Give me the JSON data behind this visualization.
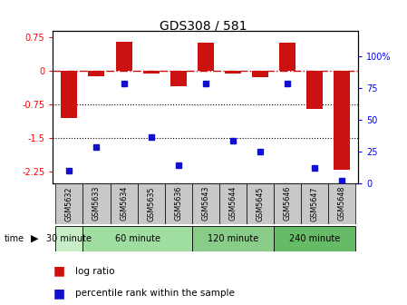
{
  "title": "GDS308 / 581",
  "samples": [
    "GSM5632",
    "GSM5633",
    "GSM5634",
    "GSM5635",
    "GSM5636",
    "GSM5643",
    "GSM5644",
    "GSM5645",
    "GSM5646",
    "GSM5647",
    "GSM5648"
  ],
  "log_ratio": [
    -1.05,
    -0.12,
    0.65,
    -0.05,
    -0.35,
    0.62,
    -0.05,
    -0.15,
    0.63,
    -0.85,
    -2.2
  ],
  "percentile": [
    10,
    28,
    78,
    36,
    14,
    78,
    33,
    25,
    78,
    12,
    2
  ],
  "groups": [
    {
      "label": "30 minute",
      "start": 0,
      "end": 0
    },
    {
      "label": "60 minute",
      "start": 1,
      "end": 3
    },
    {
      "label": "120 minute",
      "start": 5,
      "end": 7
    },
    {
      "label": "240 minute",
      "start": 8,
      "end": 10
    }
  ],
  "ylim_left": [
    -2.5,
    0.9
  ],
  "ylim_right": [
    0,
    120
  ],
  "yticks_left": [
    0.75,
    0,
    -0.75,
    -1.5,
    -2.25
  ],
  "yticks_right": [
    100,
    75,
    50,
    25,
    0
  ],
  "bar_color": "#cc1111",
  "dot_color": "#1111cc",
  "hline_color": "#cc1111",
  "dotted_lines": [
    -0.75,
    -1.5
  ],
  "legend_log": "log ratio",
  "legend_pct": "percentile rank within the sample",
  "background_color": "#ffffff",
  "group_bg_colors": [
    "#c8eec8",
    "#a0dda0",
    "#88cc88",
    "#66bb66"
  ],
  "sample_box_color": "#c8c8c8",
  "title_fontsize": 10,
  "bar_width": 0.6
}
